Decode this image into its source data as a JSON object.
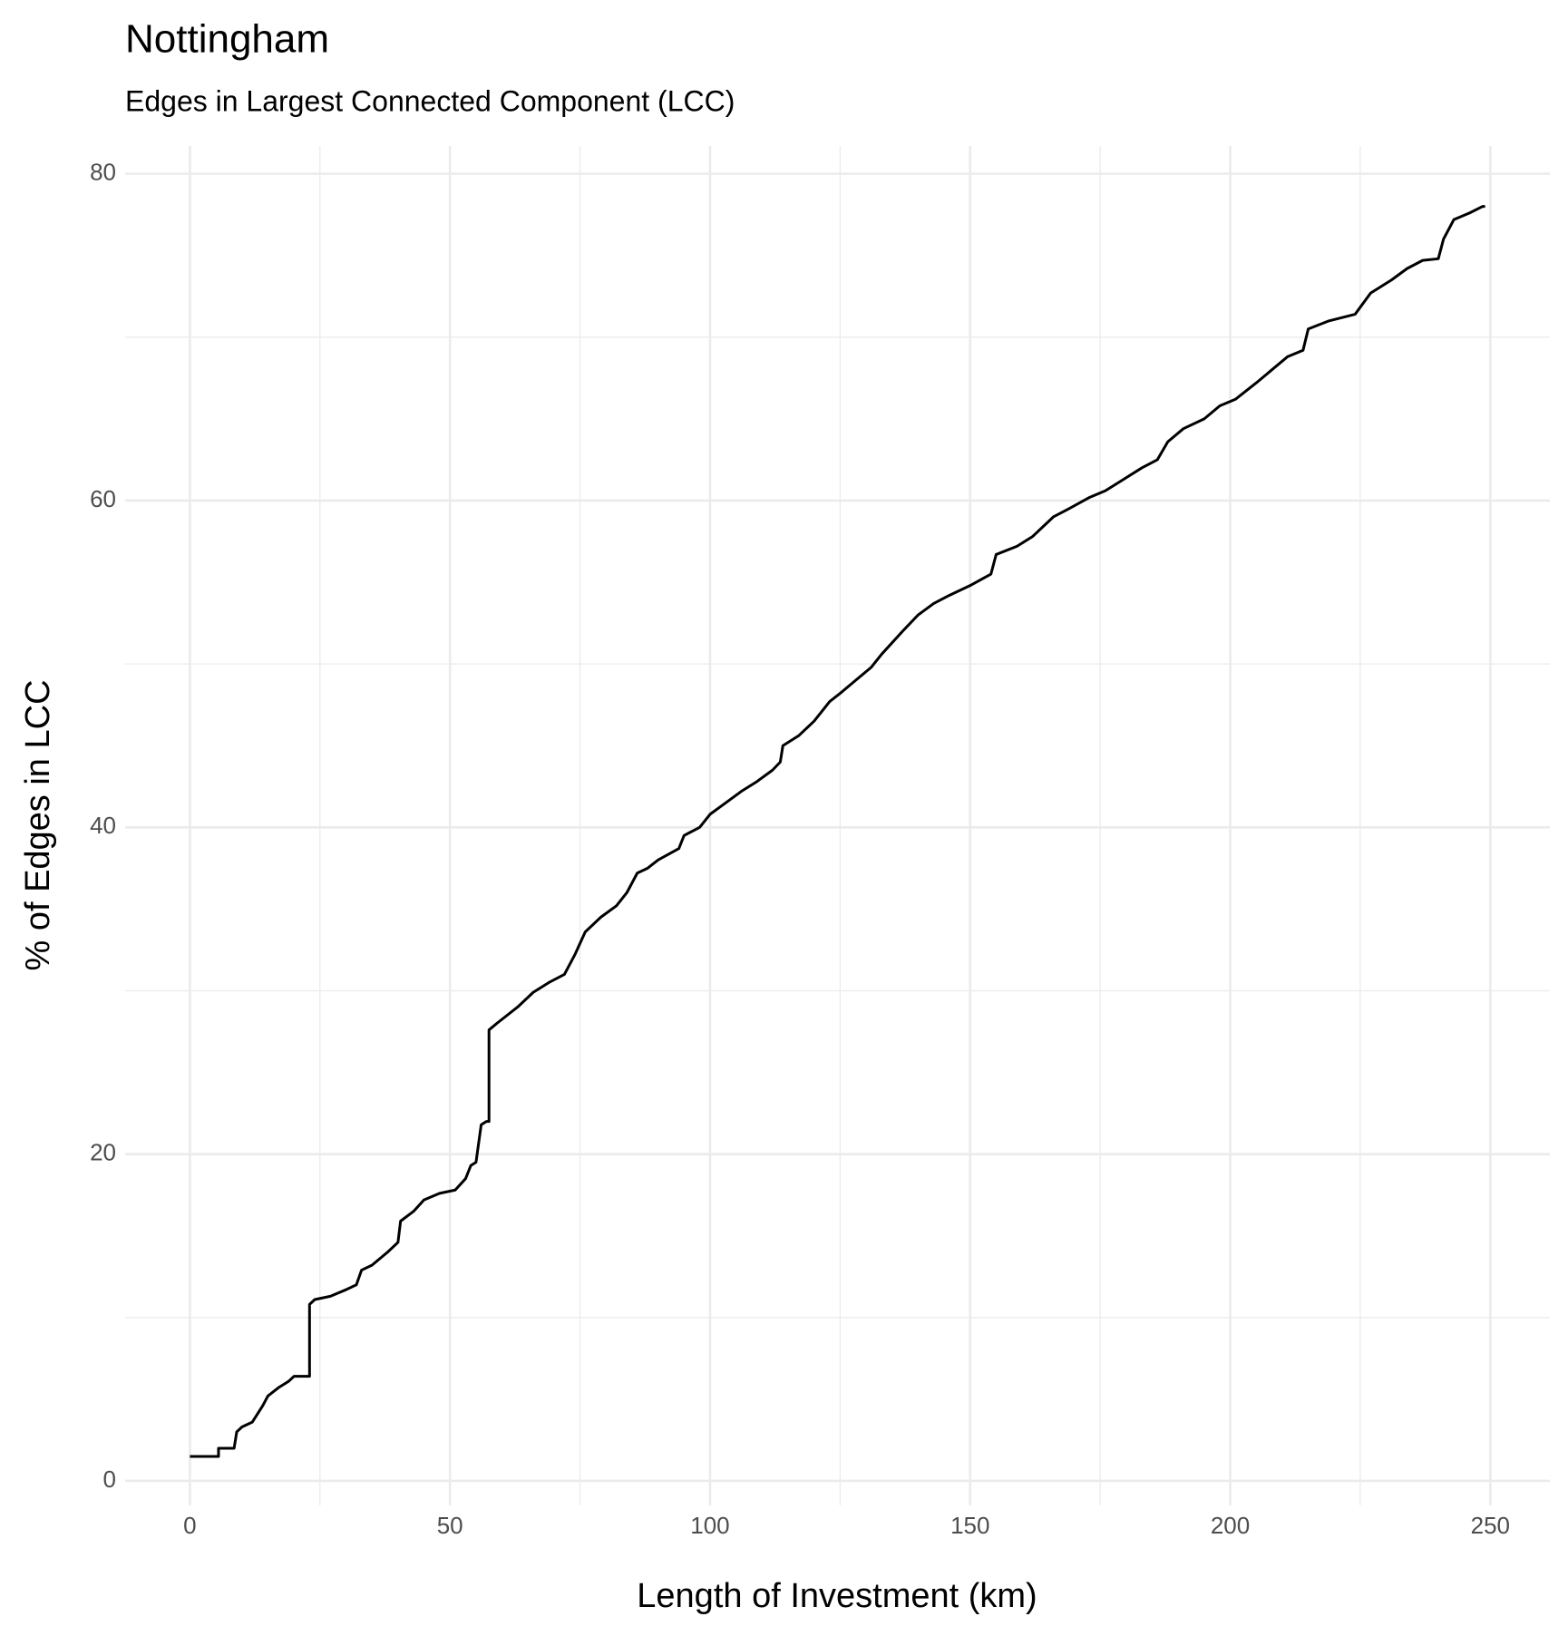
{
  "chart_data": {
    "type": "line",
    "title": "Nottingham",
    "subtitle": "Edges in Largest Connected Component (LCC)",
    "x_label": "Length of Investment (km)",
    "y_label": "% of Edges in LCC",
    "xlim": [
      -12.45,
      261.45
    ],
    "ylim": [
      -1.5,
      81.7
    ],
    "xticks": [
      0,
      50,
      100,
      150,
      200,
      250
    ],
    "yticks": [
      0,
      20,
      40,
      60,
      80
    ],
    "x_minor_grid": [
      25,
      75,
      125,
      175,
      225
    ],
    "y_minor_grid": [
      10,
      30,
      50,
      70
    ],
    "grid": true,
    "series": [
      {
        "name": "LCC",
        "color": "#000000",
        "x": [
          0,
          5.5,
          5.5,
          8.5,
          9,
          10,
          12,
          14,
          15,
          17,
          19,
          20,
          23,
          23,
          24,
          27,
          30,
          32,
          33,
          35,
          38,
          40,
          40.5,
          43,
          45,
          48,
          51,
          53,
          54,
          55,
          56,
          57,
          57.5,
          57.5,
          59,
          63,
          66,
          69,
          72,
          74,
          76,
          79,
          82,
          84,
          86,
          88,
          90,
          94,
          95,
          98,
          100,
          103,
          106,
          109,
          112,
          113.5,
          114,
          117,
          120,
          123,
          125,
          128,
          131,
          133,
          137,
          140,
          143,
          146,
          150,
          154,
          155,
          159,
          162,
          166,
          169,
          173,
          176,
          179,
          183,
          186,
          188,
          191,
          195,
          198,
          201,
          205,
          208,
          211,
          214,
          215,
          219,
          224,
          227,
          231,
          234,
          237,
          240,
          241,
          243,
          246,
          248.5,
          249
        ],
        "values": [
          1.5,
          1.5,
          2.0,
          2.0,
          3.0,
          3.3,
          3.6,
          4.6,
          5.2,
          5.7,
          6.1,
          6.4,
          6.4,
          10.8,
          11.1,
          11.3,
          11.7,
          12.0,
          12.9,
          13.2,
          14.0,
          14.6,
          15.9,
          16.5,
          17.2,
          17.6,
          17.8,
          18.5,
          19.3,
          19.5,
          21.8,
          22.0,
          22.0,
          27.6,
          28.0,
          29.0,
          29.9,
          30.5,
          31.0,
          32.2,
          33.6,
          34.5,
          35.2,
          36.0,
          37.2,
          37.5,
          38.0,
          38.7,
          39.5,
          40.0,
          40.8,
          41.5,
          42.2,
          42.8,
          43.5,
          44.0,
          45.0,
          45.6,
          46.5,
          47.7,
          48.2,
          49.0,
          49.8,
          50.6,
          52.0,
          53.0,
          53.7,
          54.2,
          54.8,
          55.5,
          56.7,
          57.2,
          57.8,
          59.0,
          59.5,
          60.2,
          60.6,
          61.2,
          62.0,
          62.5,
          63.6,
          64.4,
          65.0,
          65.8,
          66.2,
          67.2,
          68.0,
          68.8,
          69.2,
          70.5,
          71.0,
          71.4,
          72.7,
          73.5,
          74.2,
          74.7,
          74.8,
          76.0,
          77.2,
          77.6,
          78.0,
          78.0
        ]
      }
    ]
  }
}
